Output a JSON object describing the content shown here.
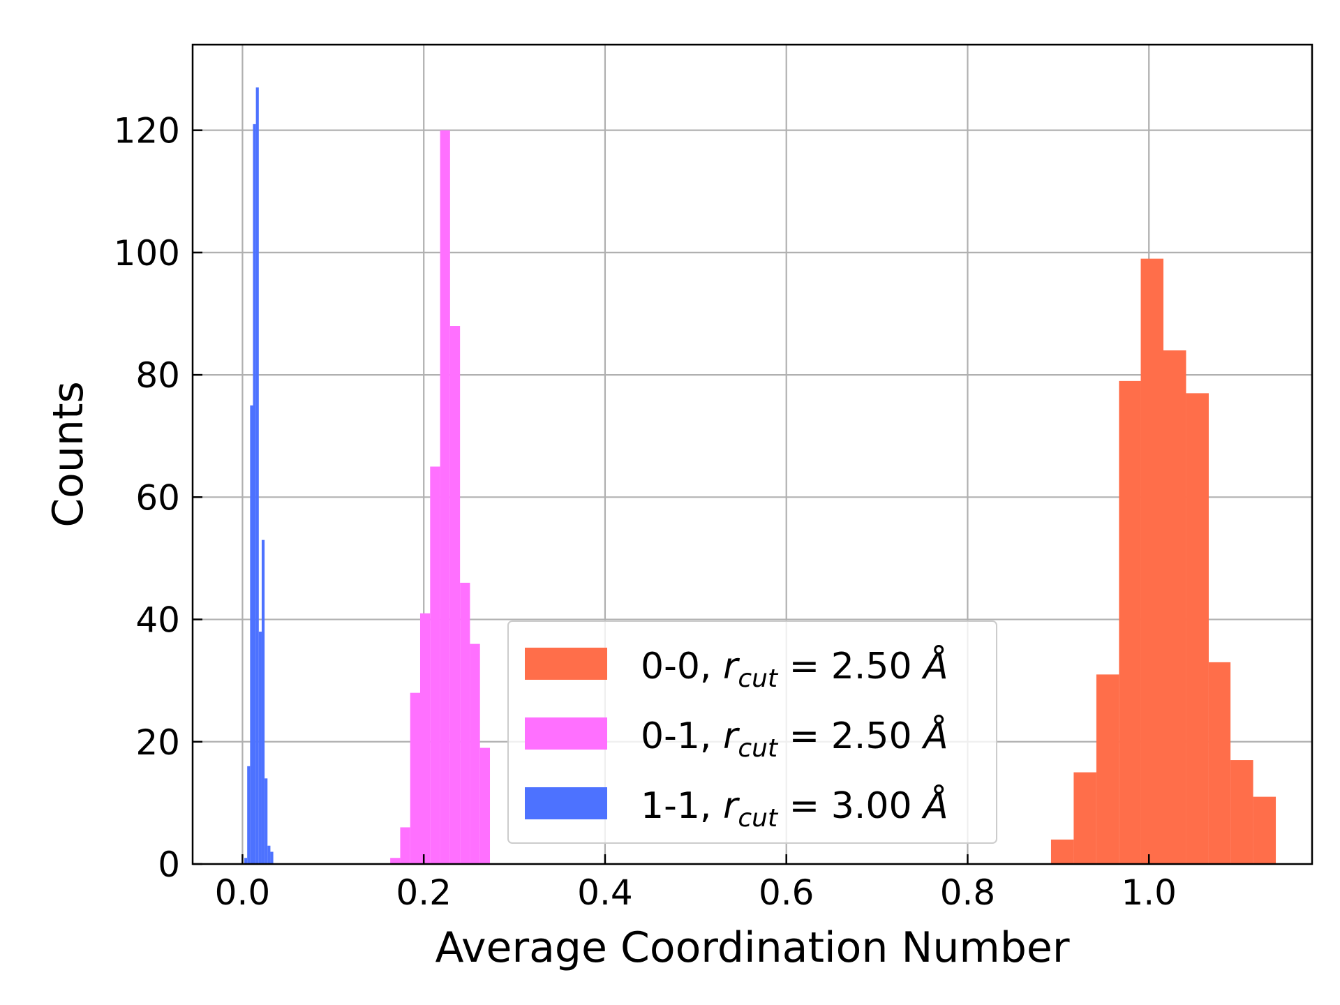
{
  "chart_data": {
    "type": "bar",
    "subtype": "histogram",
    "title": "",
    "xlabel": "Average Coordination Number",
    "ylabel": "Counts",
    "xlim": [
      -0.055,
      1.18
    ],
    "ylim": [
      0,
      134
    ],
    "xticks": [
      0.0,
      0.2,
      0.4,
      0.6,
      0.8,
      1.0
    ],
    "xtick_labels": [
      "0.0",
      "0.2",
      "0.4",
      "0.6",
      "0.8",
      "1.0"
    ],
    "yticks": [
      0,
      20,
      40,
      60,
      80,
      100,
      120
    ],
    "ytick_labels": [
      "0",
      "20",
      "40",
      "60",
      "80",
      "100",
      "120"
    ],
    "grid": true,
    "legend_position": "lower center",
    "series": [
      {
        "name": "0-0, r_cut = 2.50 Å",
        "legend": {
          "prefix": "0-0, ",
          "var": "r",
          "sub": "cut",
          "value": " = 2.50 ",
          "unit": "Å"
        },
        "color": "#ff6e4a",
        "bins": [
          {
            "x0": 0.892,
            "x1": 0.917,
            "count": 4
          },
          {
            "x0": 0.917,
            "x1": 0.942,
            "count": 15
          },
          {
            "x0": 0.942,
            "x1": 0.967,
            "count": 31
          },
          {
            "x0": 0.967,
            "x1": 0.991,
            "count": 79
          },
          {
            "x0": 0.991,
            "x1": 1.016,
            "count": 99
          },
          {
            "x0": 1.016,
            "x1": 1.041,
            "count": 84
          },
          {
            "x0": 1.041,
            "x1": 1.066,
            "count": 77
          },
          {
            "x0": 1.066,
            "x1": 1.09,
            "count": 33
          },
          {
            "x0": 1.09,
            "x1": 1.115,
            "count": 17
          },
          {
            "x0": 1.115,
            "x1": 1.14,
            "count": 11
          }
        ]
      },
      {
        "name": "0-1, r_cut = 2.50 Å",
        "legend": {
          "prefix": "0-1, ",
          "var": "r",
          "sub": "cut",
          "value": " = 2.50 ",
          "unit": "Å"
        },
        "color": "#ff70ff",
        "bins": [
          {
            "x0": 0.163,
            "x1": 0.174,
            "count": 1
          },
          {
            "x0": 0.174,
            "x1": 0.185,
            "count": 6
          },
          {
            "x0": 0.185,
            "x1": 0.196,
            "count": 28
          },
          {
            "x0": 0.196,
            "x1": 0.207,
            "count": 41
          },
          {
            "x0": 0.207,
            "x1": 0.218,
            "count": 65
          },
          {
            "x0": 0.218,
            "x1": 0.229,
            "count": 120
          },
          {
            "x0": 0.229,
            "x1": 0.24,
            "count": 88
          },
          {
            "x0": 0.24,
            "x1": 0.251,
            "count": 46
          },
          {
            "x0": 0.251,
            "x1": 0.262,
            "count": 36
          },
          {
            "x0": 0.262,
            "x1": 0.273,
            "count": 19
          }
        ]
      },
      {
        "name": "1-1, r_cut = 3.00 Å",
        "legend": {
          "prefix": "1-1, ",
          "var": "r",
          "sub": "cut",
          "value": " = 3.00 ",
          "unit": "Å"
        },
        "color": "#4d72ff",
        "bins": [
          {
            "x0": 0.002,
            "x1": 0.0052,
            "count": 1
          },
          {
            "x0": 0.0052,
            "x1": 0.0084,
            "count": 16
          },
          {
            "x0": 0.0084,
            "x1": 0.0116,
            "count": 75
          },
          {
            "x0": 0.0116,
            "x1": 0.0148,
            "count": 121
          },
          {
            "x0": 0.0148,
            "x1": 0.018,
            "count": 127
          },
          {
            "x0": 0.018,
            "x1": 0.0212,
            "count": 38
          },
          {
            "x0": 0.0212,
            "x1": 0.0244,
            "count": 53
          },
          {
            "x0": 0.0244,
            "x1": 0.0276,
            "count": 14
          },
          {
            "x0": 0.0276,
            "x1": 0.0308,
            "count": 3
          },
          {
            "x0": 0.0308,
            "x1": 0.034,
            "count": 2
          }
        ]
      }
    ]
  }
}
